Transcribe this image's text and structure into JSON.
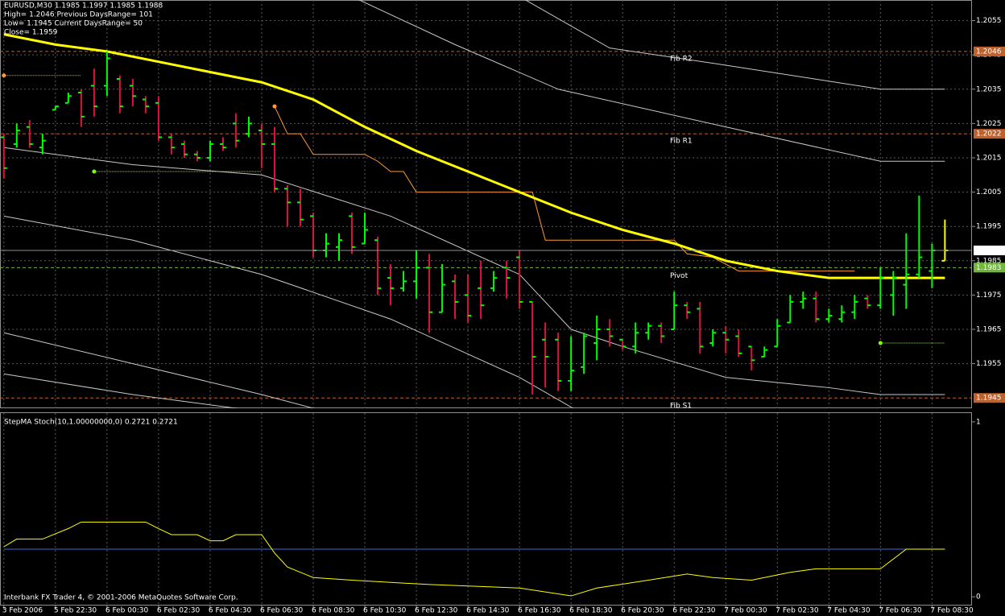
{
  "chart_data": [
    {
      "type": "ohlc",
      "header": [
        "EURUSD,M30  1.1985 1.1997 1.1985 1.1988",
        "High= 1.2046 Previous DaysRange= 101",
        "Low= 1.1945 Current DaysRange= 50",
        "Close= 1.1959"
      ],
      "open": [
        1.2021,
        1.2019,
        1.2024,
        1.2018,
        1.2029,
        1.2031,
        1.2034,
        1.2036,
        1.2036,
        1.2038,
        1.2036,
        1.2032,
        1.2031,
        1.2021,
        1.2019,
        1.2016,
        1.2015,
        1.2019,
        1.2025,
        1.2022,
        1.2023,
        1.2019,
        1.2006,
        1.2002,
        1.1998,
        1.1988,
        1.1989,
        1.1998,
        1.199,
        1.1991,
        1.198,
        1.1977,
        1.1979,
        1.1983,
        1.197,
        1.1979,
        1.1975,
        1.1977,
        1.1977,
        1.1983,
        1.1986,
        1.1973,
        1.1962,
        1.1962,
        1.195,
        1.1954,
        1.1961,
        1.1965,
        1.1962,
        1.196,
        1.1964,
        1.1966,
        1.1965,
        1.1972,
        1.1971,
        1.1961,
        1.1964,
        1.1963,
        1.196,
        1.1957,
        1.196,
        1.1967,
        1.1973,
        1.1974,
        1.1968,
        1.1968,
        1.197,
        1.1974,
        1.1972,
        1.1975,
        1.1978,
        1.1981,
        1.1982,
        1.1985
      ],
      "high": [
        1.2022,
        1.2025,
        1.2026,
        1.2022,
        1.203,
        1.2034,
        1.2035,
        1.2041,
        1.2046,
        1.2039,
        1.2038,
        1.2033,
        1.2033,
        1.2022,
        1.202,
        1.2017,
        1.202,
        1.2021,
        1.2028,
        1.2027,
        1.2025,
        1.2024,
        1.2007,
        1.2006,
        1.1999,
        1.1993,
        1.1993,
        1.1999,
        1.1999,
        1.1992,
        1.1984,
        1.1982,
        1.1988,
        1.1987,
        1.1984,
        1.1981,
        1.1981,
        1.1985,
        1.1982,
        1.1985,
        1.1988,
        1.1973,
        1.1967,
        1.1964,
        1.1963,
        1.1964,
        1.1969,
        1.1968,
        1.1962,
        1.1967,
        1.1967,
        1.1967,
        1.1976,
        1.1973,
        1.1973,
        1.1965,
        1.1966,
        1.1965,
        1.196,
        1.196,
        1.1968,
        1.1975,
        1.1976,
        1.1976,
        1.1971,
        1.1972,
        1.1975,
        1.1975,
        1.1983,
        1.1982,
        1.1993,
        1.2004,
        1.199,
        1.1997
      ],
      "low": [
        1.2009,
        1.2018,
        1.2018,
        1.2016,
        1.2029,
        1.2031,
        1.2024,
        1.2027,
        1.2033,
        1.2028,
        1.203,
        1.2028,
        1.202,
        1.2016,
        1.2015,
        1.2014,
        1.2014,
        1.2017,
        1.2018,
        1.2021,
        1.2012,
        1.2005,
        1.1995,
        1.1995,
        1.1986,
        1.1986,
        1.1985,
        1.1987,
        1.199,
        1.1975,
        1.1972,
        1.1976,
        1.1974,
        1.1964,
        1.197,
        1.1968,
        1.1967,
        1.1968,
        1.1976,
        1.1974,
        1.1971,
        1.1946,
        1.1948,
        1.1947,
        1.1947,
        1.1952,
        1.1956,
        1.196,
        1.1959,
        1.1958,
        1.1962,
        1.1961,
        1.1965,
        1.1968,
        1.1958,
        1.196,
        1.1958,
        1.1957,
        1.1953,
        1.1957,
        1.196,
        1.1967,
        1.1971,
        1.1967,
        1.1967,
        1.1967,
        1.1968,
        1.1971,
        1.1971,
        1.1969,
        1.1971,
        1.198,
        1.1977,
        1.1985
      ],
      "close": [
        1.2012,
        1.2023,
        1.2019,
        1.202,
        1.203,
        1.2033,
        1.2027,
        1.203,
        1.2044,
        1.203,
        1.2033,
        1.203,
        1.2021,
        1.2018,
        1.2016,
        1.2015,
        1.2019,
        1.2018,
        1.202,
        1.2025,
        1.2019,
        1.2006,
        1.2002,
        1.1997,
        1.1988,
        1.199,
        1.1991,
        1.1989,
        1.1994,
        1.1977,
        1.1977,
        1.1979,
        1.1983,
        1.197,
        1.1978,
        1.1973,
        1.1969,
        1.1972,
        1.198,
        1.198,
        1.1973,
        1.1957,
        1.1957,
        1.195,
        1.1953,
        1.1963,
        1.1965,
        1.1963,
        1.196,
        1.1964,
        1.1966,
        1.1963,
        1.1972,
        1.197,
        1.196,
        1.1964,
        1.1962,
        1.1958,
        1.1956,
        1.1959,
        1.1966,
        1.1973,
        1.1974,
        1.1968,
        1.1969,
        1.197,
        1.1973,
        1.1972,
        1.198,
        1.198,
        1.1981,
        1.1986,
        1.1988,
        1.1988
      ],
      "colors": {
        "up": "#00ff00",
        "down": "#dc143c",
        "last": "#ffff00"
      },
      "xlim": [
        -0.3,
        75.1
      ],
      "xticks": [
        {
          "value": 0,
          "label": "3 Feb 2006"
        },
        {
          "value": 4,
          "label": "5 Feb 22:30"
        },
        {
          "value": 8,
          "label": "6 Feb 00:30"
        },
        {
          "value": 12,
          "label": "6 Feb 02:30"
        },
        {
          "value": 16,
          "label": "6 Feb 04:30"
        },
        {
          "value": 20,
          "label": "6 Feb 06:30"
        },
        {
          "value": 24,
          "label": "6 Feb 08:30"
        },
        {
          "value": 28,
          "label": "6 Feb 10:30"
        },
        {
          "value": 32,
          "label": "6 Feb 12:30"
        },
        {
          "value": 36,
          "label": "6 Feb 14:30"
        },
        {
          "value": 40,
          "label": "6 Feb 16:30"
        },
        {
          "value": 44,
          "label": "6 Feb 18:30"
        },
        {
          "value": 48,
          "label": "6 Feb 20:30"
        },
        {
          "value": 52,
          "label": "6 Feb 22:30"
        },
        {
          "value": 56,
          "label": "7 Feb 00:30"
        },
        {
          "value": 60,
          "label": "7 Feb 02:30"
        },
        {
          "value": 64,
          "label": "7 Feb 04:30"
        },
        {
          "value": 68,
          "label": "7 Feb 06:30"
        },
        {
          "value": 72,
          "label": "7 Feb 08:30"
        }
      ],
      "ylim": [
        1.1942,
        1.2061
      ],
      "yticks": [
        1.2055,
        1.2045,
        1.2035,
        1.2025,
        1.2015,
        1.2005,
        1.1995,
        1.1985,
        1.1975,
        1.1965,
        1.1955
      ],
      "grid": true,
      "series": [
        {
          "color": "#c8c8c8",
          "width": 1,
          "x": [
            40,
            47,
            56,
            68,
            73
          ],
          "values": [
            1.2062,
            1.2047,
            1.2042,
            1.2035,
            1.2035
          ]
        },
        {
          "color": "#c8c8c8",
          "width": 1,
          "x": [
            27,
            35,
            43,
            56,
            68,
            73
          ],
          "values": [
            1.2062,
            1.2048,
            1.2035,
            1.2024,
            1.2014,
            1.2014
          ]
        },
        {
          "color": "#c8c8c8",
          "width": 1,
          "x": [
            0,
            10,
            20,
            30,
            40,
            44,
            48,
            56,
            64,
            68,
            73
          ],
          "values": [
            1.2018,
            1.2013,
            1.201,
            1.1998,
            1.1981,
            1.1965,
            1.196,
            1.1951,
            1.1948,
            1.1946,
            1.1946
          ]
        },
        {
          "color": "#c8c8c8",
          "width": 1,
          "x": [
            0,
            10,
            20,
            30,
            40,
            46
          ],
          "values": [
            1.1998,
            1.1991,
            1.1981,
            1.1968,
            1.1951,
            1.1938
          ]
        },
        {
          "color": "#c8c8c8",
          "width": 1,
          "x": [
            0,
            10,
            20,
            25
          ],
          "values": [
            1.1964,
            1.1955,
            1.1946,
            1.1941
          ]
        },
        {
          "color": "#c8c8c8",
          "width": 1,
          "x": [
            0,
            10,
            20
          ],
          "values": [
            1.1952,
            1.1946,
            1.1941
          ]
        },
        {
          "color": "#ff9933",
          "width": 1,
          "x": [
            21,
            22,
            23,
            24,
            28,
            29,
            30,
            31,
            32,
            41,
            42,
            52,
            53,
            55,
            57,
            66
          ],
          "values": [
            1.203,
            1.2022,
            1.2022,
            1.2016,
            1.2016,
            1.2014,
            1.2011,
            1.2011,
            1.2005,
            1.2005,
            1.1991,
            1.1991,
            1.1987,
            1.1986,
            1.1982,
            1.1982
          ]
        },
        {
          "color": "#ffff00",
          "width": 3,
          "x": [
            0,
            4,
            8,
            12,
            16,
            20,
            24,
            28,
            32,
            36,
            40,
            44,
            48,
            52,
            56,
            60,
            64,
            68,
            73
          ],
          "values": [
            1.2051,
            1.2048,
            1.2046,
            1.2043,
            1.204,
            1.2037,
            1.2032,
            1.2024,
            1.2017,
            1.2011,
            1.2005,
            1.1999,
            1.1994,
            1.199,
            1.1985,
            1.1982,
            1.198,
            1.198,
            1.198
          ]
        }
      ],
      "segments": [
        {
          "color": "#ff9933",
          "x": [
            0,
            6
          ],
          "value": 1.2039
        },
        {
          "color": "#7cfc00",
          "x": [
            7,
            20
          ],
          "value": 1.2011
        },
        {
          "color": "#7cfc00",
          "x": [
            68,
            73
          ],
          "value": 1.1961
        }
      ],
      "levels": [
        {
          "label": "Fib R2",
          "value": 1.2046,
          "color": "#c0602c"
        },
        {
          "label": "Fib R1",
          "value": 1.2022,
          "color": "#c0602c"
        },
        {
          "label": "Pivot",
          "value": 1.1983,
          "color": "#6fb83a"
        },
        {
          "label": "Fib S1",
          "value": 1.1945,
          "color": "#c0602c"
        }
      ]
    },
    {
      "type": "line",
      "title": "StepMA Stoch(10,1.00000000,0) 0.2721 0.2721",
      "xlim": [
        -0.3,
        75.1
      ],
      "ylim": [
        -0.05,
        1.05
      ],
      "yticks": [
        0,
        1
      ],
      "series": [
        {
          "color": "#3a6fd8",
          "x": [
            0,
            73
          ],
          "values": [
            0.2721,
            0.2721
          ]
        },
        {
          "color": "#ffff00",
          "x": [
            0,
            1,
            3,
            5,
            6,
            11,
            12,
            13,
            15,
            16,
            17,
            18,
            20,
            21,
            22,
            24,
            27,
            33,
            40,
            44,
            46,
            50,
            53,
            55,
            58,
            61,
            63,
            68,
            70,
            73
          ],
          "values": [
            0.286,
            0.33,
            0.33,
            0.39,
            0.427,
            0.427,
            0.39,
            0.355,
            0.355,
            0.32,
            0.32,
            0.355,
            0.355,
            0.25,
            0.17,
            0.11,
            0.095,
            0.07,
            0.05,
            0.005,
            0.05,
            0.095,
            0.13,
            0.11,
            0.095,
            0.14,
            0.16,
            0.16,
            0.2721,
            0.2721
          ]
        }
      ],
      "footer": "Interbank FX Trader 4, © 2001-2006 MetaQuotes Software Corp."
    }
  ]
}
